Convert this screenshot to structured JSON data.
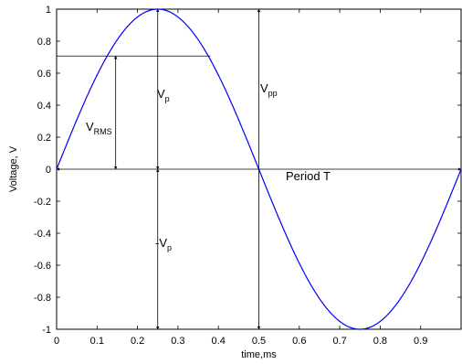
{
  "chart_data": {
    "type": "line",
    "xlabel": "time,ms",
    "ylabel": "Voltage, V",
    "xlim": [
      0,
      1
    ],
    "ylim": [
      -1,
      1
    ],
    "xticks": [
      0,
      0.1,
      0.2,
      0.3,
      0.4,
      0.5,
      0.6,
      0.7,
      0.8,
      0.9
    ],
    "xtick_labels": [
      "0",
      "0.1",
      "0.2",
      "0.3",
      "0.4",
      "0.5",
      "0.6",
      "0.7",
      "0.8",
      "0.9"
    ],
    "yticks": [
      1,
      0.8,
      0.6,
      0.4,
      0.2,
      0,
      -0.2,
      -0.4,
      -0.6,
      -0.8,
      -1
    ],
    "ytick_labels": [
      "1",
      "0.8",
      "0.6",
      "0.4",
      "0.2",
      "0",
      "-0.2",
      "-0.4",
      "-0.6",
      "-0.8",
      "-1"
    ],
    "grid": false,
    "series": [
      {
        "function": "sin(2*pi*t)",
        "period_ms": 1,
        "amplitude": 1,
        "color": "#0000ff",
        "x": [
          0,
          0.05,
          0.1,
          0.15,
          0.2,
          0.25,
          0.3,
          0.35,
          0.4,
          0.45,
          0.5,
          0.55,
          0.6,
          0.65,
          0.7,
          0.75,
          0.8,
          0.85,
          0.9,
          0.95,
          1.0
        ],
        "y": [
          0,
          0.309,
          0.588,
          0.809,
          0.951,
          1,
          0.951,
          0.809,
          0.588,
          0.309,
          0,
          -0.309,
          -0.588,
          -0.809,
          -0.951,
          -1,
          -0.951,
          -0.809,
          -0.588,
          -0.309,
          0
        ]
      }
    ],
    "annotations": {
      "vrms": {
        "main": "V",
        "sub": "RMS",
        "x": 0.146,
        "y_from": 0,
        "y_to": 0.707,
        "hline_x_to": 0.38
      },
      "vp": {
        "main": "V",
        "sub": "p",
        "x": 0.25,
        "y_from": 0,
        "y_to": 1
      },
      "neg_vp": {
        "main": "-V",
        "sub": "p",
        "x": 0.25,
        "y_from": 0,
        "y_to": -1
      },
      "vpp": {
        "main": "V",
        "sub": "pp",
        "x": 0.5,
        "y_from": -1,
        "y_to": 1
      },
      "period": {
        "text": "Period T",
        "x_from": 0,
        "x_to": 1,
        "y": 0
      }
    },
    "annotation_color": "#000000",
    "axis_color": "#000000"
  }
}
